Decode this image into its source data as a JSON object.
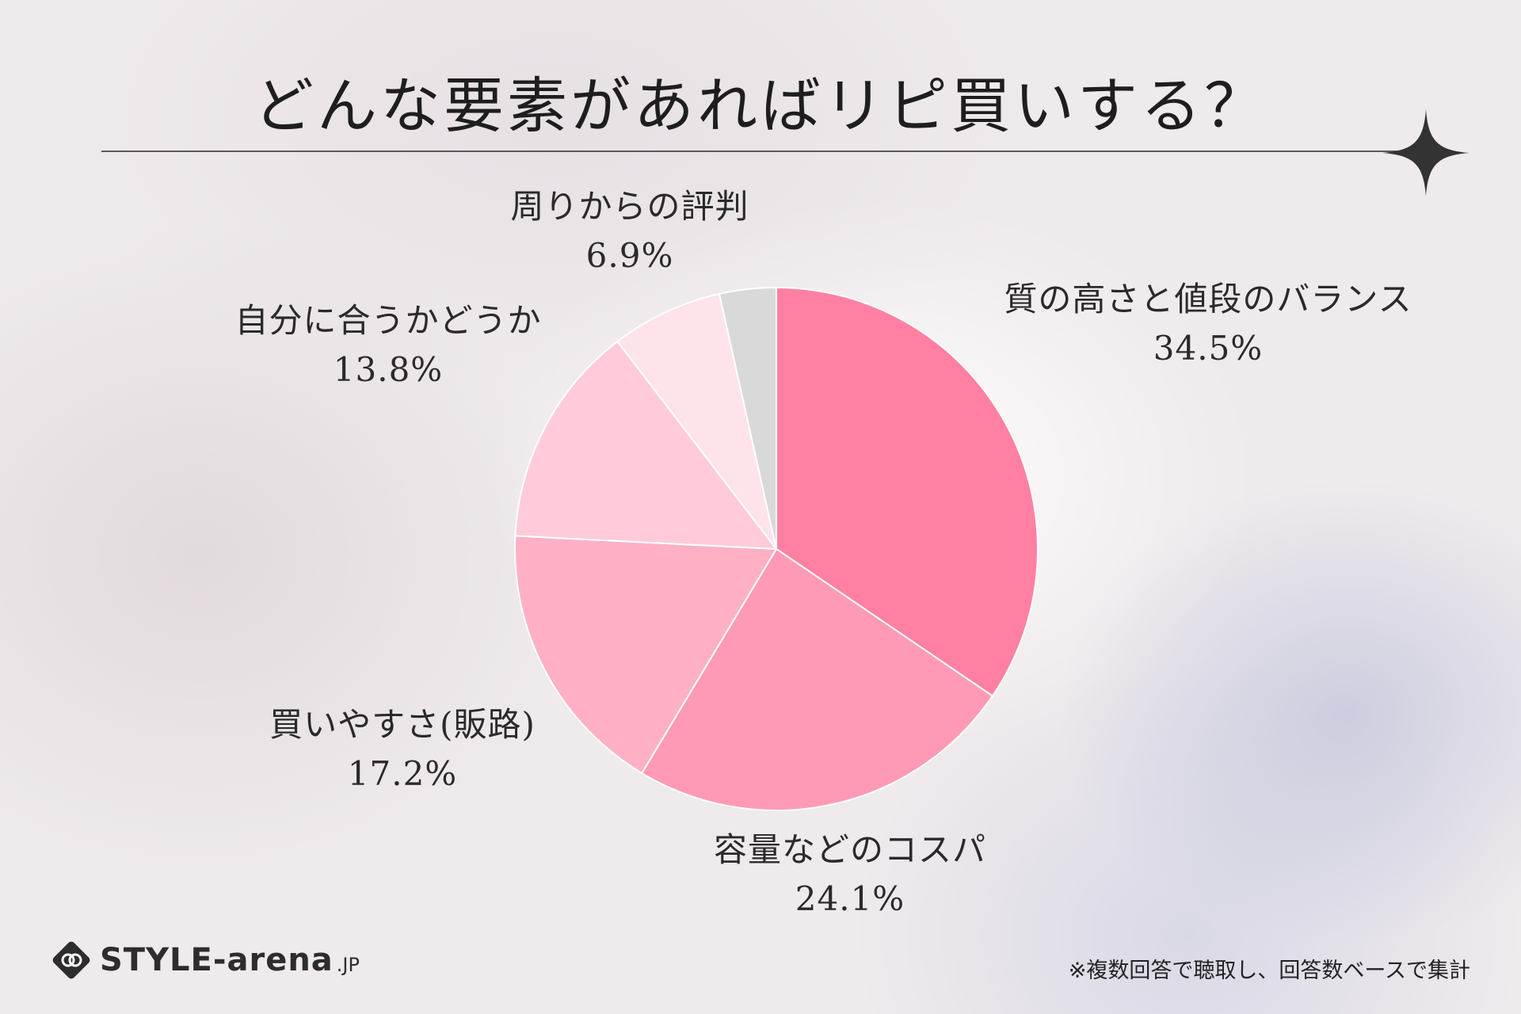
{
  "title": "どんな要素があればリピ買いする？",
  "chart_data": {
    "type": "pie",
    "title": "どんな要素があればリピ買いする？",
    "slices": [
      {
        "label": "質の高さと値段のバランス",
        "value": 34.5,
        "value_label": "34.5%",
        "color": "#ff80a2"
      },
      {
        "label": "容量などのコスパ",
        "value": 24.1,
        "value_label": "24.1%",
        "color": "#ff9ab6"
      },
      {
        "label": "買いやすさ(販路)",
        "value": 17.2,
        "value_label": "17.2%",
        "color": "#ffb0c5"
      },
      {
        "label": "自分に合うかどうか",
        "value": 13.8,
        "value_label": "13.8%",
        "color": "#ffcbda"
      },
      {
        "label": "周りからの評判",
        "value": 6.9,
        "value_label": "6.9%",
        "color": "#ffe3eb"
      },
      {
        "label": "",
        "value": 3.5,
        "value_label": "",
        "color": "#d9d9d9"
      }
    ]
  },
  "footer": {
    "logo_text": "STYLE-arena",
    "logo_suffix": ".JP",
    "note": "※複数回答で聴取し、回答数ベースで集計"
  }
}
